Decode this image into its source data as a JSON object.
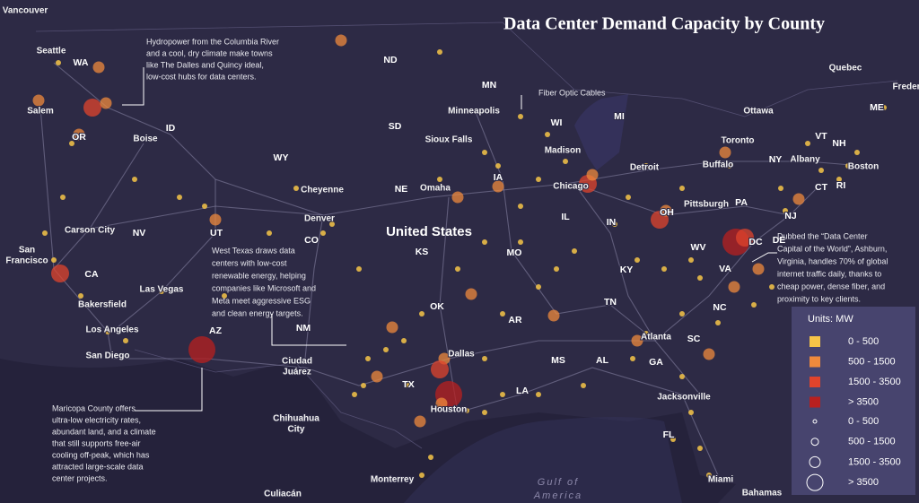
{
  "title": "Data Center Demand Capacity by County",
  "country": "United States",
  "sea": [
    "Gulf of",
    "America"
  ],
  "places": [
    "Vancouver",
    "Seattle",
    "WA",
    "Salem",
    "OR",
    "Boise",
    "ID",
    "ND",
    "MN",
    "Minneapolis",
    "WI",
    "MI",
    "SD",
    "Sioux Falls",
    "Madison",
    "WY",
    "Cheyenne",
    "NE",
    "Omaha",
    "IA",
    "Chicago",
    "Detroit",
    "Toronto",
    "Buffalo",
    "Ottawa",
    "Quebec",
    "Freder",
    "ME",
    "VT",
    "NH",
    "NY",
    "Albany",
    "Boston",
    "CT",
    "RI",
    "PA",
    "Pittsburgh",
    "NJ",
    "OH",
    "IN",
    "IL",
    "DC",
    "DE",
    "WV",
    "VA",
    "KY",
    "MO",
    "KS",
    "CO",
    "Denver",
    "UT",
    "NV",
    "Carson City",
    [
      "San",
      "Francisco"
    ],
    "CA",
    "Las Vegas",
    "Bakersfield",
    "Los Angeles",
    "San Diego",
    "AZ",
    "NM",
    "OK",
    "AR",
    "TN",
    "NC",
    "SC",
    "Atlanta",
    "AL",
    "GA",
    "MS",
    "Dallas",
    "TX",
    "LA",
    [
      "Ciudad",
      "Juárez"
    ],
    "Houston",
    "Jacksonville",
    "FL",
    [
      "Chihuahua",
      "City"
    ],
    "Miami",
    "Monterrey",
    "Culiacán",
    "Bahamas"
  ],
  "annotations": [
    [
      "Hydropower from the Columbia River",
      "and a cool, dry climate make towns",
      "like The Dalles and Quincy ideal,",
      "low-cost hubs for data centers."
    ],
    [
      "Fiber Optic Cables"
    ],
    [
      "West Texas draws data",
      "centers with low-cost",
      "renewable energy, helping",
      "companies like Microsoft and",
      "Meta meet aggressive ESG",
      "and clean energy targets."
    ],
    [
      "Dubbed the “Data Center",
      "Capital of the World”, Ashburn,",
      "Virginia, handles 70% of global",
      "internet traffic daily, thanks to",
      "cheap power, dense fiber, and",
      "proximity to key clients."
    ],
    [
      "Maricopa County offers",
      "ultra-low electricity rates,",
      "abundant land, and a climate",
      "that still supports free-air",
      "cooling off-peak, which has",
      "attracted large-scale data",
      "center projects."
    ]
  ],
  "legend": {
    "title": "Units: MW",
    "colors": [
      {
        "label": "0 - 500",
        "color": "#f7c548"
      },
      {
        "label": "500 - 1500",
        "color": "#ef8a3c"
      },
      {
        "label": "1500 - 3500",
        "color": "#e0442c"
      },
      {
        "label": "> 3500",
        "color": "#b8201f"
      }
    ],
    "sizes": [
      "0 - 500",
      "500 - 1500",
      "1500 - 3500",
      "> 3500"
    ]
  }
}
